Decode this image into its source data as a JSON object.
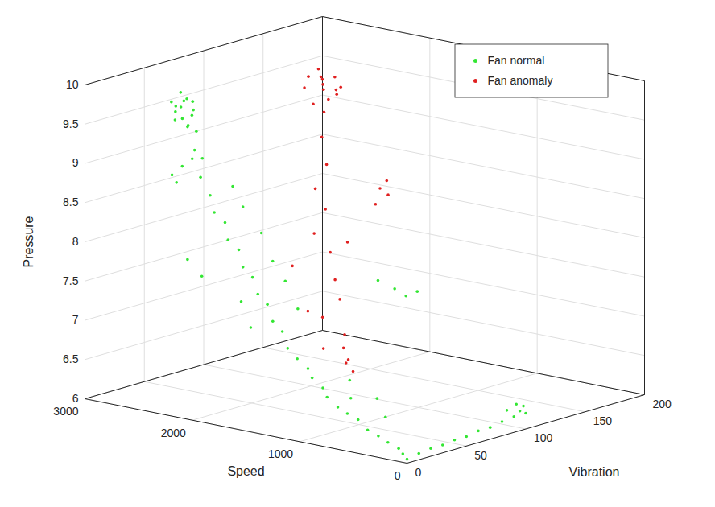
{
  "chart_data": {
    "type": "scatter3d",
    "x_label": "Speed",
    "y_label": "Vibration",
    "z_label": "Pressure",
    "xlim": [
      0,
      3000
    ],
    "xticks": [
      0,
      1000,
      2000,
      3000
    ],
    "ylim": [
      0,
      200
    ],
    "yticks": [
      0,
      50,
      100,
      150,
      200
    ],
    "zlim": [
      6,
      10
    ],
    "zticks": [
      6,
      6.5,
      7,
      7.5,
      8,
      8.5,
      9,
      9.5,
      10
    ],
    "grid": true,
    "legend": "upper right",
    "series": [
      {
        "name": "Fan normal",
        "color": "#33e633",
        "marker": "dot",
        "values": [
          [
            2300,
            20,
            9.9
          ],
          [
            2250,
            18,
            9.95
          ],
          [
            2350,
            22,
            9.8
          ],
          [
            2280,
            25,
            9.7
          ],
          [
            2320,
            15,
            9.85
          ],
          [
            2260,
            20,
            9.6
          ],
          [
            2300,
            28,
            9.75
          ],
          [
            2240,
            22,
            9.9
          ],
          [
            2360,
            18,
            9.65
          ],
          [
            2290,
            12,
            9.8
          ],
          [
            2310,
            24,
            9.55
          ],
          [
            2270,
            16,
            9.7
          ],
          [
            2330,
            20,
            10.0
          ],
          [
            2250,
            26,
            9.5
          ],
          [
            2350,
            14,
            9.9
          ],
          [
            2300,
            10,
            9.0
          ],
          [
            2280,
            12,
            8.9
          ],
          [
            2260,
            15,
            9.1
          ],
          [
            2200,
            20,
            9.3
          ],
          [
            2150,
            22,
            9.2
          ],
          [
            2200,
            18,
            9.2
          ],
          [
            2100,
            16,
            9.0
          ],
          [
            2000,
            15,
            8.8
          ],
          [
            1950,
            14,
            8.6
          ],
          [
            1850,
            14,
            8.5
          ],
          [
            1800,
            12,
            8.3
          ],
          [
            1700,
            12,
            8.2
          ],
          [
            1650,
            11,
            8.0
          ],
          [
            1550,
            10,
            7.9
          ],
          [
            1500,
            10,
            7.7
          ],
          [
            1400,
            9,
            7.6
          ],
          [
            1350,
            9,
            7.4
          ],
          [
            1250,
            8,
            7.3
          ],
          [
            1200,
            8,
            7.1
          ],
          [
            1100,
            7,
            7.0
          ],
          [
            1000,
            7,
            6.9
          ],
          [
            950,
            6,
            6.8
          ],
          [
            850,
            6,
            6.7
          ],
          [
            800,
            5,
            6.6
          ],
          [
            700,
            5,
            6.5
          ],
          [
            600,
            4,
            6.45
          ],
          [
            500,
            4,
            6.4
          ],
          [
            400,
            3,
            6.3
          ],
          [
            300,
            3,
            6.25
          ],
          [
            200,
            2,
            6.2
          ],
          [
            100,
            2,
            6.15
          ],
          [
            50,
            1,
            6.1
          ],
          [
            0,
            0,
            6.05
          ],
          [
            1900,
            25,
            8.9
          ],
          [
            1750,
            20,
            8.7
          ],
          [
            1600,
            22,
            8.4
          ],
          [
            1450,
            18,
            8.1
          ],
          [
            1300,
            15,
            7.9
          ],
          [
            1150,
            12,
            7.6
          ],
          [
            1600,
            5,
            7.6
          ],
          [
            1500,
            4,
            7.3
          ],
          [
            2100,
            5,
            8.0
          ],
          [
            2000,
            8,
            7.8
          ],
          [
            1000,
            80,
            7.6
          ],
          [
            950,
            85,
            7.5
          ],
          [
            900,
            90,
            7.55
          ],
          [
            1100,
            75,
            7.7
          ],
          [
            500,
            20,
            6.6
          ],
          [
            700,
            15,
            6.8
          ],
          [
            800,
            25,
            6.5
          ],
          [
            400,
            18,
            6.4
          ],
          [
            0,
            10,
            6.08
          ],
          [
            0,
            20,
            6.1
          ],
          [
            0,
            30,
            6.1
          ],
          [
            0,
            40,
            6.12
          ],
          [
            0,
            50,
            6.12
          ],
          [
            0,
            60,
            6.15
          ],
          [
            0,
            70,
            6.15
          ],
          [
            0,
            80,
            6.18
          ],
          [
            0,
            90,
            6.2
          ],
          [
            0,
            95,
            6.25
          ],
          [
            0,
            100,
            6.2
          ],
          [
            0,
            98,
            6.3
          ],
          [
            0,
            92,
            6.35
          ],
          [
            10,
            85,
            6.3
          ]
        ]
      },
      {
        "name": "Fan anomaly",
        "color": "#e02020",
        "marker": "dot",
        "values": [
          [
            2000,
            110,
            9.8
          ],
          [
            1950,
            105,
            9.9
          ],
          [
            2050,
            115,
            9.7
          ],
          [
            2000,
            120,
            9.85
          ],
          [
            1980,
            100,
            9.6
          ],
          [
            2020,
            108,
            10.0
          ],
          [
            1900,
            112,
            9.75
          ],
          [
            2080,
            105,
            9.9
          ],
          [
            1960,
            118,
            9.65
          ],
          [
            2040,
            98,
            9.8
          ],
          [
            2000,
            125,
            9.7
          ],
          [
            1930,
            102,
            9.95
          ],
          [
            2060,
            120,
            9.55
          ],
          [
            1990,
            110,
            9.45
          ],
          [
            1900,
            100,
            9.2
          ],
          [
            1800,
            95,
            8.9
          ],
          [
            1850,
            90,
            8.6
          ],
          [
            1700,
            85,
            8.4
          ],
          [
            1750,
            80,
            8.1
          ],
          [
            1600,
            80,
            7.9
          ],
          [
            1500,
            75,
            7.6
          ],
          [
            1400,
            70,
            7.4
          ],
          [
            1450,
            60,
            7.2
          ],
          [
            1300,
            65,
            7.0
          ],
          [
            1200,
            55,
            6.9
          ],
          [
            1100,
            50,
            6.8
          ],
          [
            1000,
            45,
            6.7
          ],
          [
            1550,
            90,
            8.0
          ],
          [
            1800,
            140,
            8.4
          ],
          [
            1780,
            145,
            8.3
          ],
          [
            1820,
            138,
            8.2
          ],
          [
            1760,
            142,
            8.5
          ],
          [
            1400,
            30,
            8.0
          ],
          [
            1200,
            25,
            7.5
          ],
          [
            1000,
            20,
            7.1
          ],
          [
            900,
            30,
            6.9
          ]
        ]
      }
    ]
  }
}
